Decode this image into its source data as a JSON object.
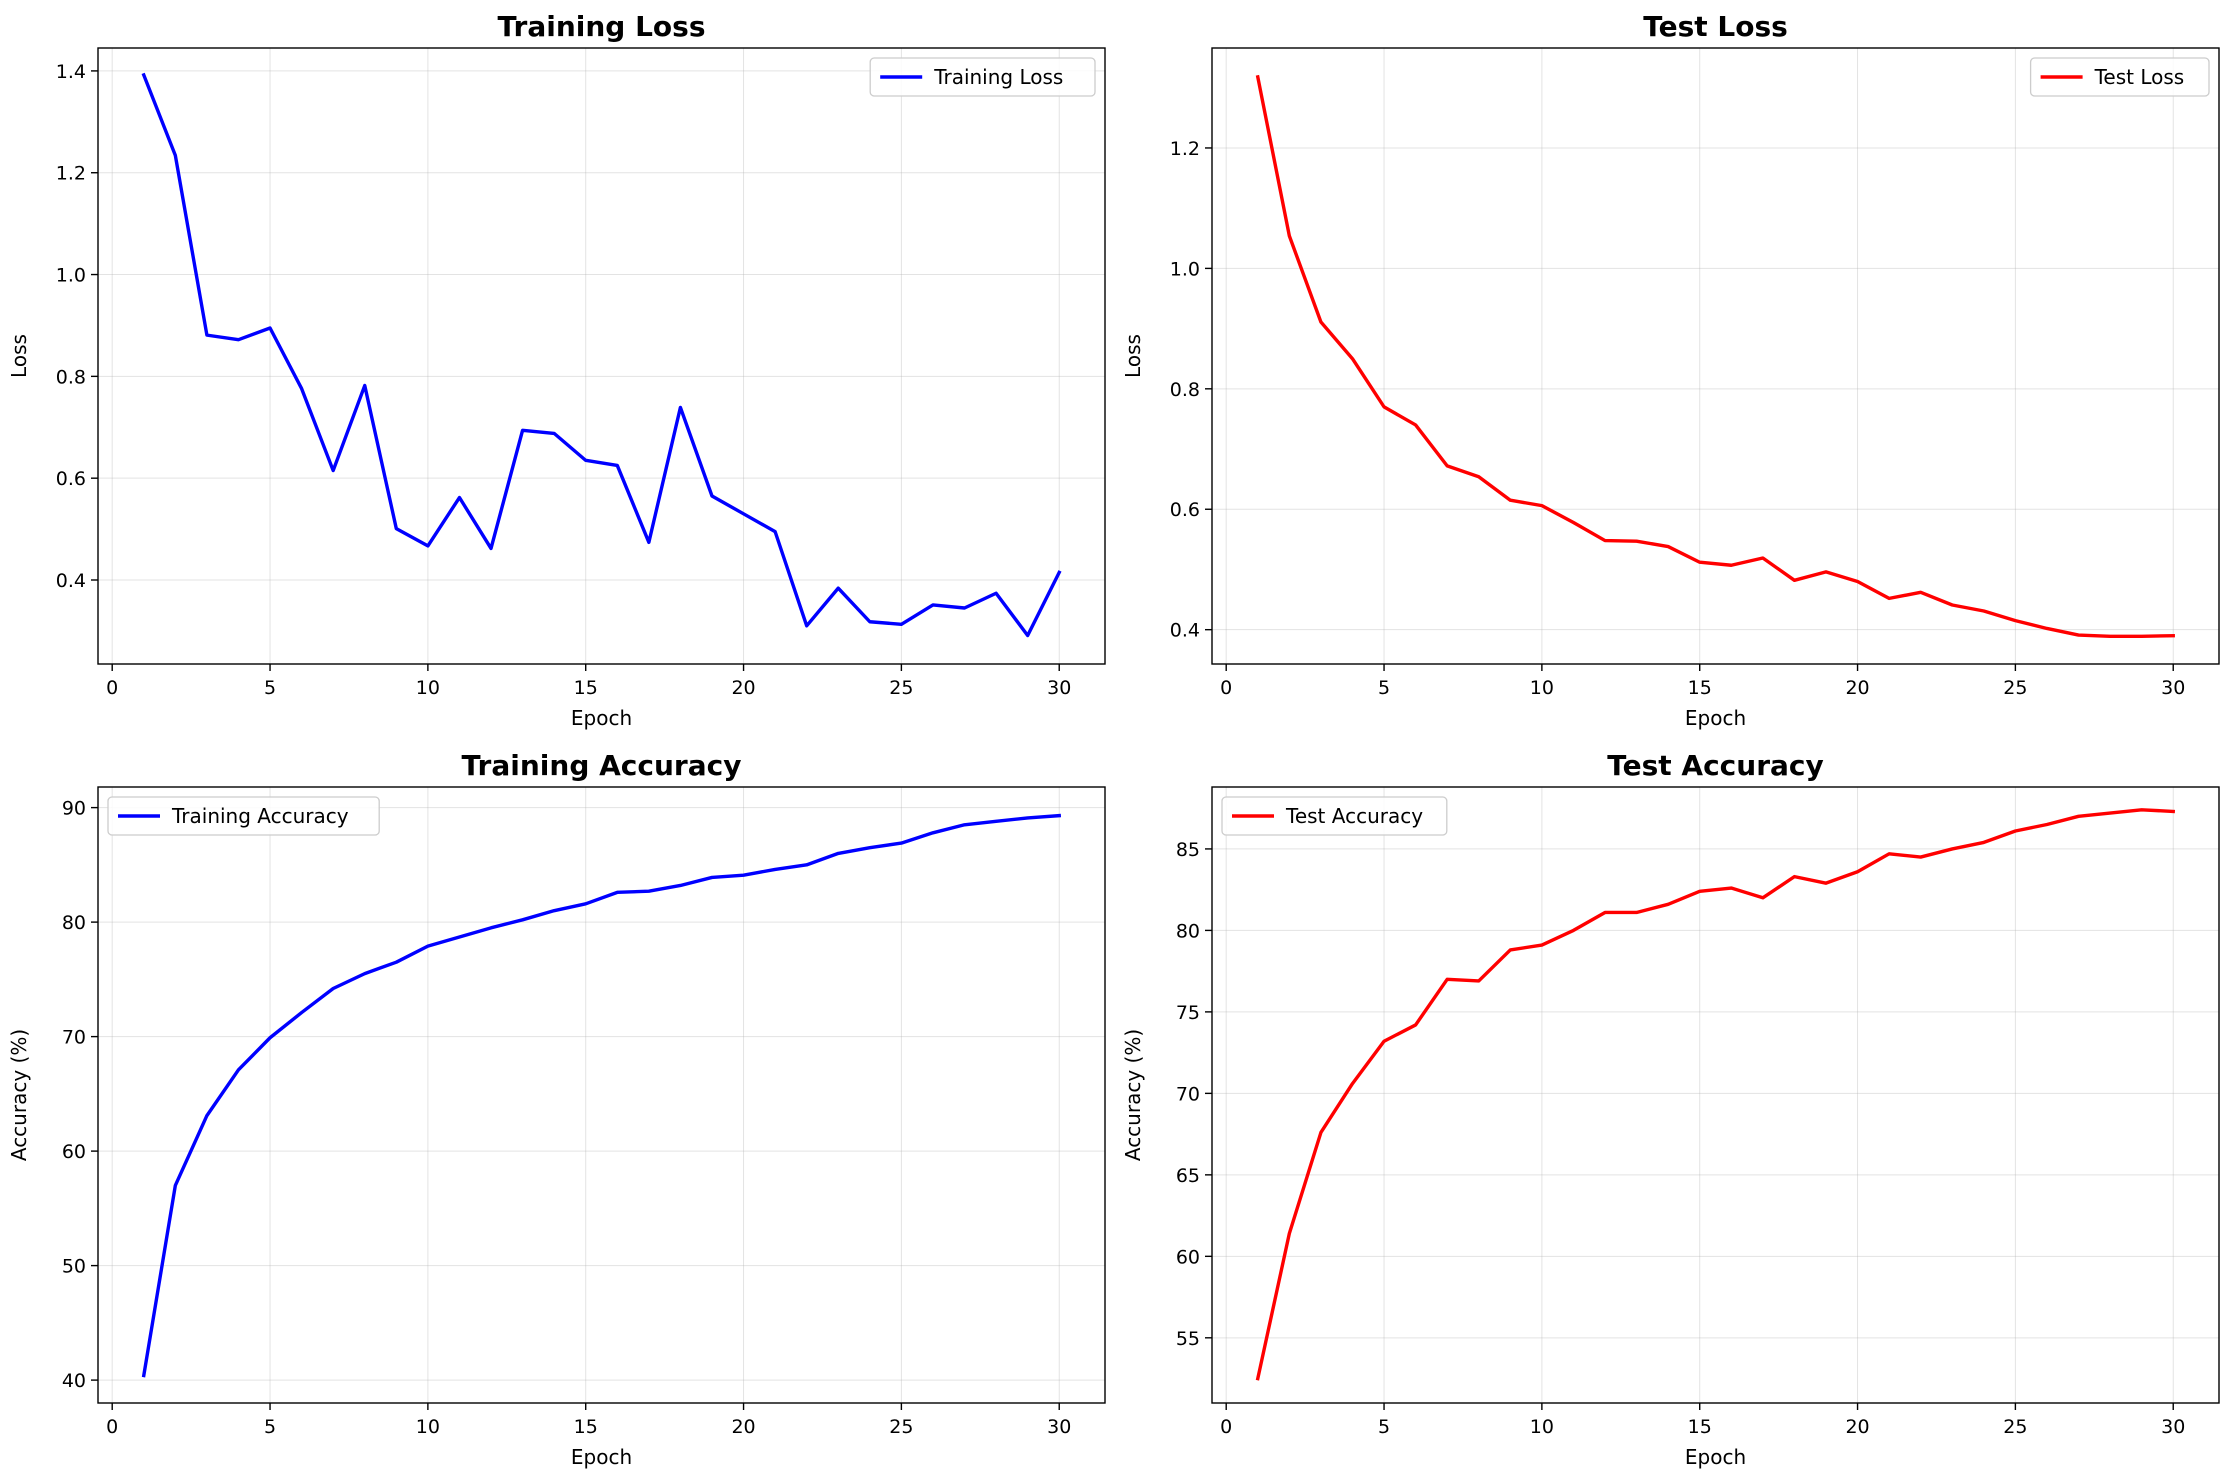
{
  "chart_data": [
    {
      "type": "line",
      "title": "Training Loss",
      "xlabel": "Epoch",
      "ylabel": "Loss",
      "xlim": [
        -0.45,
        31.45
      ],
      "ylim": [
        0.235,
        1.445
      ],
      "xticks": [
        0,
        5,
        10,
        15,
        20,
        25,
        30
      ],
      "yticks": [
        0.4,
        0.6,
        0.8,
        1.0,
        1.2,
        1.4
      ],
      "ytick_format": 1,
      "grid": true,
      "legend": "upper right",
      "series": [
        {
          "name": "Training Loss",
          "color": "#0000ff",
          "x": [
            1,
            2,
            3,
            4,
            5,
            6,
            7,
            8,
            9,
            10,
            11,
            12,
            13,
            14,
            15,
            16,
            17,
            18,
            19,
            20,
            21,
            22,
            23,
            24,
            25,
            26,
            27,
            28,
            29,
            30
          ],
          "y": [
            1.392,
            1.234,
            0.881,
            0.872,
            0.895,
            0.776,
            0.615,
            0.782,
            0.501,
            0.467,
            0.562,
            0.462,
            0.694,
            0.688,
            0.635,
            0.625,
            0.474,
            0.739,
            0.565,
            0.53,
            0.495,
            0.31,
            0.384,
            0.318,
            0.313,
            0.351,
            0.345,
            0.374,
            0.291,
            0.415
          ]
        }
      ]
    },
    {
      "type": "line",
      "title": "Test Loss",
      "xlabel": "Epoch",
      "ylabel": "Loss",
      "xlim": [
        -0.45,
        31.45
      ],
      "ylim": [
        0.343,
        1.366
      ],
      "xticks": [
        0,
        5,
        10,
        15,
        20,
        25,
        30
      ],
      "yticks": [
        0.4,
        0.6,
        0.8,
        1.0,
        1.2
      ],
      "ytick_format": 1,
      "grid": true,
      "legend": "upper right",
      "series": [
        {
          "name": "Test Loss",
          "color": "#ff0000",
          "x": [
            1,
            2,
            3,
            4,
            5,
            6,
            7,
            8,
            9,
            10,
            11,
            12,
            13,
            14,
            15,
            16,
            17,
            18,
            19,
            20,
            21,
            22,
            23,
            24,
            25,
            26,
            27,
            28,
            29,
            30
          ],
          "y": [
            1.318,
            1.054,
            0.911,
            0.85,
            0.77,
            0.74,
            0.672,
            0.654,
            0.615,
            0.606,
            0.578,
            0.548,
            0.547,
            0.538,
            0.512,
            0.507,
            0.519,
            0.482,
            0.496,
            0.48,
            0.452,
            0.462,
            0.441,
            0.431,
            0.415,
            0.402,
            0.391,
            0.389,
            0.389,
            0.39
          ]
        }
      ]
    },
    {
      "type": "line",
      "title": "Training Accuracy",
      "xlabel": "Epoch",
      "ylabel": "Accuracy (%)",
      "xlim": [
        -0.45,
        31.45
      ],
      "ylim": [
        38.0,
        91.8
      ],
      "xticks": [
        0,
        5,
        10,
        15,
        20,
        25,
        30
      ],
      "yticks": [
        40,
        50,
        60,
        70,
        80,
        90
      ],
      "ytick_format": 0,
      "grid": true,
      "legend": "upper left",
      "series": [
        {
          "name": "Training Accuracy",
          "color": "#0000ff",
          "x": [
            1,
            2,
            3,
            4,
            5,
            6,
            7,
            8,
            9,
            10,
            11,
            12,
            13,
            14,
            15,
            16,
            17,
            18,
            19,
            20,
            21,
            22,
            23,
            24,
            25,
            26,
            27,
            28,
            29,
            30
          ],
          "y": [
            40.4,
            57.0,
            63.1,
            67.1,
            69.9,
            72.1,
            74.2,
            75.5,
            76.5,
            77.9,
            78.7,
            79.5,
            80.2,
            81.0,
            81.6,
            82.6,
            82.7,
            83.2,
            83.9,
            84.1,
            84.6,
            85.0,
            86.0,
            86.5,
            86.9,
            87.8,
            88.5,
            88.8,
            89.1,
            89.3
          ]
        }
      ]
    },
    {
      "type": "line",
      "title": "Test Accuracy",
      "xlabel": "Epoch",
      "ylabel": "Accuracy (%)",
      "xlim": [
        -0.45,
        31.45
      ],
      "ylim": [
        51.0,
        88.8
      ],
      "xticks": [
        0,
        5,
        10,
        15,
        20,
        25,
        30
      ],
      "yticks": [
        55,
        60,
        65,
        70,
        75,
        80,
        85
      ],
      "ytick_format": 0,
      "grid": true,
      "legend": "upper left",
      "series": [
        {
          "name": "Test Accuracy",
          "color": "#ff0000",
          "x": [
            1,
            2,
            3,
            4,
            5,
            6,
            7,
            8,
            9,
            10,
            11,
            12,
            13,
            14,
            15,
            16,
            17,
            18,
            19,
            20,
            21,
            22,
            23,
            24,
            25,
            26,
            27,
            28,
            29,
            30
          ],
          "y": [
            52.5,
            61.4,
            67.6,
            70.6,
            73.2,
            74.2,
            77.0,
            76.9,
            78.8,
            79.1,
            80.0,
            81.1,
            81.1,
            81.6,
            82.4,
            82.6,
            82.0,
            83.3,
            82.9,
            83.6,
            84.7,
            84.5,
            85.0,
            85.4,
            86.1,
            86.5,
            87.0,
            87.2,
            87.4,
            87.3
          ]
        }
      ]
    }
  ]
}
